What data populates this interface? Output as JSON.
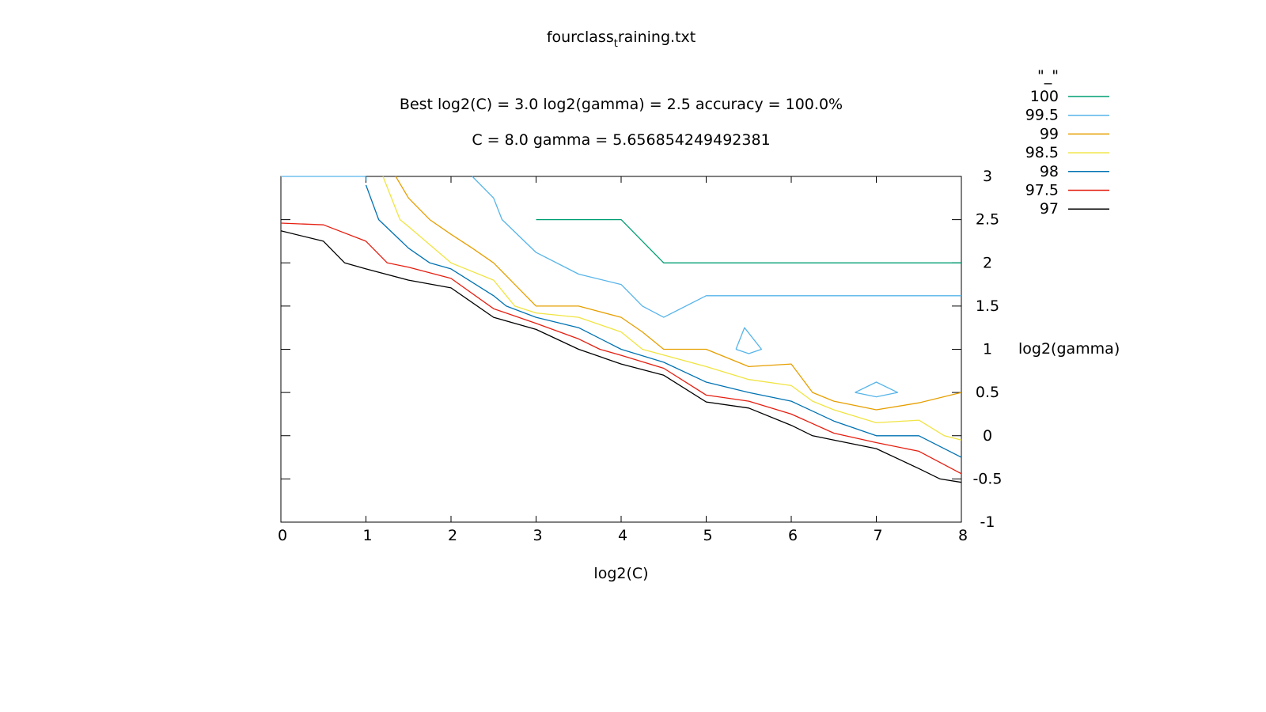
{
  "chart_data": {
    "type": "line",
    "title": "fourclass_training.txt",
    "title_main": "fourclass",
    "title_sub": "t",
    "title_rest": "raining.txt",
    "subtitle_lines": [
      "Best log2(C) = 3.0  log2(gamma) = 2.5  accuracy = 100.0%",
      "C = 8.0  gamma = 5.656854249492381"
    ],
    "xlabel": "log2(C)",
    "ylabel": "log2(gamma)",
    "xlim": [
      0,
      8
    ],
    "ylim": [
      -1,
      3
    ],
    "x_ticks": [
      "0",
      "1",
      "2",
      "3",
      "4",
      "5",
      "6",
      "7",
      "8"
    ],
    "y_ticks": [
      "-1",
      "-0.5",
      "0",
      "0.5",
      "1",
      "1.5",
      "2",
      "2.5",
      "3"
    ],
    "legend_title": "\"_\"",
    "legend_position": "top-right",
    "grid": false,
    "series": [
      {
        "name": "100",
        "color": "#009e73",
        "segments": [
          [
            [
              3.0,
              2.5
            ],
            [
              4.0,
              2.5
            ],
            [
              4.5,
              2.0
            ],
            [
              8.0,
              2.0
            ]
          ]
        ]
      },
      {
        "name": "99.5",
        "color": "#56b4e9",
        "segments": [
          [
            [
              0.0,
              3.0
            ],
            [
              1.0,
              3.0
            ]
          ],
          [
            [
              2.25,
              3.0
            ],
            [
              2.5,
              2.75
            ],
            [
              2.6,
              2.5
            ],
            [
              3.0,
              2.12
            ],
            [
              3.5,
              1.87
            ],
            [
              4.0,
              1.75
            ],
            [
              4.25,
              1.5
            ],
            [
              4.5,
              1.37
            ],
            [
              5.0,
              1.62
            ],
            [
              8.0,
              1.62
            ]
          ],
          [
            [
              5.35,
              1.0
            ],
            [
              5.45,
              1.25
            ],
            [
              5.65,
              1.0
            ],
            [
              5.5,
              0.95
            ],
            [
              5.35,
              1.0
            ]
          ],
          [
            [
              6.75,
              0.5
            ],
            [
              7.0,
              0.62
            ],
            [
              7.25,
              0.5
            ],
            [
              7.0,
              0.45
            ],
            [
              6.75,
              0.5
            ]
          ]
        ]
      },
      {
        "name": "99",
        "color": "#e69f00",
        "segments": [
          [
            [
              1.35,
              3.0
            ],
            [
              1.5,
              2.75
            ],
            [
              1.75,
              2.5
            ],
            [
              2.0,
              2.33
            ],
            [
              2.25,
              2.17
            ],
            [
              2.5,
              2.0
            ],
            [
              2.75,
              1.75
            ],
            [
              3.0,
              1.5
            ],
            [
              3.5,
              1.5
            ],
            [
              4.0,
              1.37
            ],
            [
              4.25,
              1.2
            ],
            [
              4.5,
              1.0
            ],
            [
              5.0,
              1.0
            ],
            [
              5.5,
              0.8
            ],
            [
              6.0,
              0.83
            ],
            [
              6.25,
              0.5
            ],
            [
              6.5,
              0.4
            ],
            [
              7.0,
              0.3
            ],
            [
              7.5,
              0.38
            ],
            [
              8.0,
              0.5
            ]
          ]
        ]
      },
      {
        "name": "98.5",
        "color": "#f0e442",
        "segments": [
          [
            [
              1.2,
              3.0
            ],
            [
              1.4,
              2.5
            ],
            [
              1.5,
              2.42
            ],
            [
              2.0,
              2.0
            ],
            [
              2.5,
              1.8
            ],
            [
              2.75,
              1.5
            ],
            [
              3.0,
              1.42
            ],
            [
              3.5,
              1.37
            ],
            [
              4.0,
              1.2
            ],
            [
              4.25,
              1.0
            ],
            [
              5.0,
              0.8
            ],
            [
              5.5,
              0.65
            ],
            [
              6.0,
              0.58
            ],
            [
              6.25,
              0.4
            ],
            [
              6.5,
              0.3
            ],
            [
              7.0,
              0.15
            ],
            [
              7.5,
              0.18
            ],
            [
              7.8,
              0.0
            ],
            [
              8.0,
              -0.05
            ]
          ]
        ]
      },
      {
        "name": "98",
        "color": "#0072b2",
        "segments": [
          [
            [
              1.0,
              3.0
            ],
            [
              1.0,
              2.95
            ]
          ],
          [
            [
              1.0,
              2.9
            ],
            [
              1.15,
              2.5
            ],
            [
              1.5,
              2.17
            ],
            [
              1.75,
              2.0
            ],
            [
              2.0,
              1.93
            ],
            [
              2.5,
              1.62
            ],
            [
              2.65,
              1.5
            ],
            [
              3.0,
              1.37
            ],
            [
              3.5,
              1.25
            ],
            [
              4.0,
              1.0
            ],
            [
              4.5,
              0.85
            ],
            [
              5.0,
              0.62
            ],
            [
              5.5,
              0.5
            ],
            [
              6.0,
              0.4
            ],
            [
              6.5,
              0.17
            ],
            [
              7.0,
              0.0
            ],
            [
              7.5,
              0.0
            ],
            [
              8.0,
              -0.25
            ]
          ]
        ]
      },
      {
        "name": "97.5",
        "color": "#e51e10",
        "segments": [
          [
            [
              0.0,
              2.46
            ],
            [
              0.5,
              2.44
            ],
            [
              1.0,
              2.25
            ],
            [
              1.25,
              2.0
            ],
            [
              1.5,
              1.95
            ],
            [
              2.0,
              1.82
            ],
            [
              2.5,
              1.47
            ],
            [
              3.0,
              1.3
            ],
            [
              3.5,
              1.12
            ],
            [
              3.75,
              1.0
            ],
            [
              4.0,
              0.93
            ],
            [
              4.5,
              0.78
            ],
            [
              5.0,
              0.47
            ],
            [
              5.5,
              0.4
            ],
            [
              6.0,
              0.25
            ],
            [
              6.5,
              0.03
            ],
            [
              7.0,
              -0.08
            ],
            [
              7.5,
              -0.18
            ],
            [
              8.0,
              -0.44
            ]
          ]
        ]
      },
      {
        "name": "97",
        "color": "#000000",
        "segments": [
          [
            [
              0.0,
              2.37
            ],
            [
              0.5,
              2.25
            ],
            [
              0.75,
              2.0
            ],
            [
              1.0,
              1.93
            ],
            [
              1.5,
              1.8
            ],
            [
              2.0,
              1.71
            ],
            [
              2.5,
              1.37
            ],
            [
              3.0,
              1.23
            ],
            [
              3.5,
              1.0
            ],
            [
              4.0,
              0.83
            ],
            [
              4.5,
              0.7
            ],
            [
              5.0,
              0.39
            ],
            [
              5.5,
              0.32
            ],
            [
              6.0,
              0.12
            ],
            [
              6.25,
              0.0
            ],
            [
              6.5,
              -0.05
            ],
            [
              7.0,
              -0.15
            ],
            [
              7.5,
              -0.38
            ],
            [
              7.75,
              -0.5
            ],
            [
              8.0,
              -0.54
            ]
          ]
        ]
      }
    ]
  }
}
